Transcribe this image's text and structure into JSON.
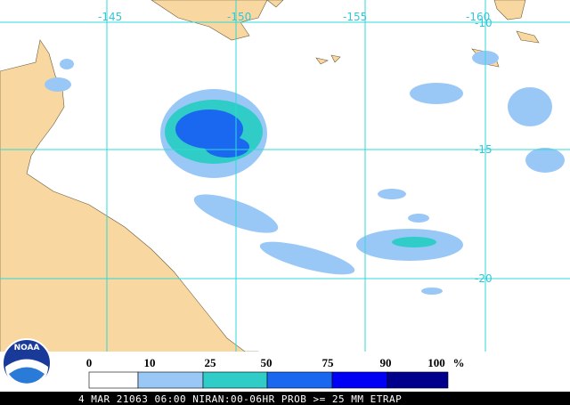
{
  "map": {
    "lon_labels": [
      "-145",
      "-150",
      "-155",
      "-160"
    ],
    "lat_labels": [
      "-10",
      "-15",
      "-20"
    ]
  },
  "legend": {
    "labels": [
      "0",
      "10",
      "25",
      "50",
      "75",
      "90",
      "100"
    ],
    "unit": "%"
  },
  "logo": "NOAA",
  "footer": "4 MAR 21063 06:00 NIRAN:00-06HR PROB >= 25 MM ETRAP"
}
